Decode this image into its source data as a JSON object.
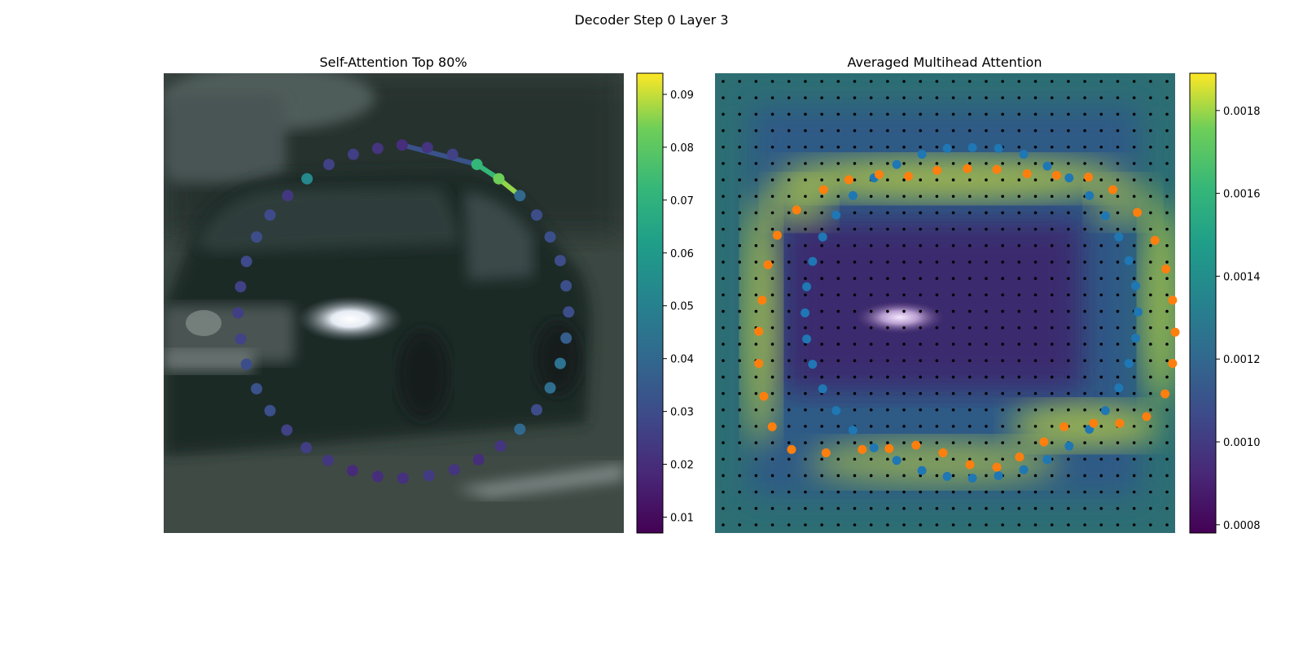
{
  "figure": {
    "suptitle": "Decoder Step 0 Layer 3"
  },
  "chart_data": [
    {
      "type": "scatter",
      "title": "Self-Attention Top 80%",
      "background": "photo: dark green station wagon car, headlight lit, trees in background",
      "colormap": "viridis",
      "colorbar": {
        "range": [
          0.007,
          0.094
        ],
        "ticks": [
          "0.01",
          "0.02",
          "0.03",
          "0.04",
          "0.05",
          "0.06",
          "0.07",
          "0.08",
          "0.09"
        ]
      },
      "points": [
        {
          "x": 478,
          "y": 172,
          "v": 0.02
        },
        {
          "x": 508,
          "y": 175,
          "v": 0.022
        },
        {
          "x": 538,
          "y": 183,
          "v": 0.026
        },
        {
          "x": 567,
          "y": 195,
          "v": 0.072
        },
        {
          "x": 593,
          "y": 212,
          "v": 0.083
        },
        {
          "x": 618,
          "y": 232,
          "v": 0.04
        },
        {
          "x": 638,
          "y": 255,
          "v": 0.03
        },
        {
          "x": 654,
          "y": 281,
          "v": 0.031
        },
        {
          "x": 666,
          "y": 309,
          "v": 0.03
        },
        {
          "x": 673,
          "y": 339,
          "v": 0.031
        },
        {
          "x": 676,
          "y": 370,
          "v": 0.03
        },
        {
          "x": 673,
          "y": 401,
          "v": 0.036
        },
        {
          "x": 666,
          "y": 431,
          "v": 0.044
        },
        {
          "x": 654,
          "y": 460,
          "v": 0.042
        },
        {
          "x": 638,
          "y": 486,
          "v": 0.03
        },
        {
          "x": 618,
          "y": 509,
          "v": 0.04
        },
        {
          "x": 595,
          "y": 529,
          "v": 0.022
        },
        {
          "x": 569,
          "y": 545,
          "v": 0.02
        },
        {
          "x": 540,
          "y": 557,
          "v": 0.022
        },
        {
          "x": 510,
          "y": 564,
          "v": 0.024
        },
        {
          "x": 479,
          "y": 567,
          "v": 0.021
        },
        {
          "x": 449,
          "y": 565,
          "v": 0.02
        },
        {
          "x": 419,
          "y": 558,
          "v": 0.019
        },
        {
          "x": 390,
          "y": 546,
          "v": 0.023
        },
        {
          "x": 364,
          "y": 531,
          "v": 0.025
        },
        {
          "x": 341,
          "y": 510,
          "v": 0.026
        },
        {
          "x": 321,
          "y": 487,
          "v": 0.031
        },
        {
          "x": 305,
          "y": 461,
          "v": 0.032
        },
        {
          "x": 293,
          "y": 432,
          "v": 0.03
        },
        {
          "x": 286,
          "y": 402,
          "v": 0.027
        },
        {
          "x": 283,
          "y": 371,
          "v": 0.025
        },
        {
          "x": 286,
          "y": 340,
          "v": 0.026
        },
        {
          "x": 293,
          "y": 310,
          "v": 0.029
        },
        {
          "x": 305,
          "y": 281,
          "v": 0.03
        },
        {
          "x": 321,
          "y": 255,
          "v": 0.029
        },
        {
          "x": 342,
          "y": 232,
          "v": 0.023
        },
        {
          "x": 365,
          "y": 212,
          "v": 0.053
        },
        {
          "x": 391,
          "y": 195,
          "v": 0.026
        },
        {
          "x": 420,
          "y": 183,
          "v": 0.025
        },
        {
          "x": 449,
          "y": 176,
          "v": 0.022
        }
      ],
      "lines": [
        {
          "from": [
            593,
            212
          ],
          "to": [
            613,
            228
          ],
          "v": 0.086
        },
        {
          "from": [
            567,
            195
          ],
          "to": [
            593,
            212
          ],
          "v": 0.072
        },
        {
          "from": [
            478,
            172
          ],
          "to": [
            567,
            195
          ],
          "v": 0.032
        }
      ]
    },
    {
      "type": "heatmap",
      "title": "Averaged Multihead Attention",
      "background": "photo: same car, dimmed, with attention heatmap overlay",
      "colormap": "viridis",
      "colorbar": {
        "range": [
          0.00078,
          0.00189
        ],
        "ticks": [
          "0.0008",
          "0.0010",
          "0.0012",
          "0.0014",
          "0.0016",
          "0.0018"
        ]
      },
      "grid_dots": {
        "cols": 28,
        "rows": 28
      },
      "blue_points": [
        [
          1096,
          183
        ],
        [
          1126,
          176
        ],
        [
          1156,
          175
        ],
        [
          1187,
          176
        ],
        [
          1217,
          183
        ],
        [
          1245,
          197
        ],
        [
          1271,
          211
        ],
        [
          1295,
          232
        ],
        [
          1314,
          256
        ],
        [
          1330,
          281
        ],
        [
          1342,
          309
        ],
        [
          1350,
          339
        ],
        [
          1353,
          370
        ],
        [
          1350,
          401
        ],
        [
          1342,
          431
        ],
        [
          1330,
          460
        ],
        [
          1314,
          487
        ],
        [
          1295,
          509
        ],
        [
          1271,
          529
        ],
        [
          1245,
          545
        ],
        [
          1217,
          557
        ],
        [
          1187,
          564
        ],
        [
          1156,
          567
        ],
        [
          1126,
          565
        ],
        [
          1096,
          558
        ],
        [
          1066,
          546
        ],
        [
          1039,
          531
        ],
        [
          1014,
          510
        ],
        [
          994,
          487
        ],
        [
          978,
          461
        ],
        [
          966,
          432
        ],
        [
          959,
          402
        ],
        [
          957,
          371
        ],
        [
          959,
          340
        ],
        [
          966,
          310
        ],
        [
          978,
          281
        ],
        [
          994,
          255
        ],
        [
          1014,
          232
        ],
        [
          1039,
          211
        ],
        [
          1066,
          195
        ]
      ],
      "orange_points": [
        [
          1256,
          208
        ],
        [
          1294,
          210
        ],
        [
          1323,
          225
        ],
        [
          1352,
          252
        ],
        [
          1373,
          285
        ],
        [
          1386,
          319
        ],
        [
          1394,
          356
        ],
        [
          1397,
          394
        ],
        [
          1394,
          431
        ],
        [
          1385,
          467
        ],
        [
          1363,
          494
        ],
        [
          1331,
          502
        ],
        [
          1300,
          502
        ],
        [
          1265,
          506
        ],
        [
          1241,
          524
        ],
        [
          1212,
          542
        ],
        [
          1185,
          554
        ],
        [
          1153,
          551
        ],
        [
          1121,
          537
        ],
        [
          1089,
          528
        ],
        [
          1057,
          532
        ],
        [
          1025,
          533
        ],
        [
          982,
          537
        ],
        [
          941,
          533
        ],
        [
          918,
          506
        ],
        [
          908,
          470
        ],
        [
          902,
          431
        ],
        [
          902,
          393
        ],
        [
          906,
          356
        ],
        [
          913,
          314
        ],
        [
          924,
          279
        ],
        [
          947,
          249
        ],
        [
          979,
          225
        ],
        [
          1009,
          213
        ],
        [
          1045,
          207
        ],
        [
          1080,
          209
        ],
        [
          1114,
          202
        ],
        [
          1150,
          200
        ],
        [
          1185,
          201
        ],
        [
          1221,
          206
        ]
      ],
      "heat_blobs": [
        {
          "x": 1130,
          "y": 212,
          "sx": 210,
          "sy": 26,
          "a": 0.95
        },
        {
          "x": 905,
          "y": 380,
          "sx": 22,
          "sy": 150,
          "a": 0.9
        },
        {
          "x": 1380,
          "y": 360,
          "sx": 24,
          "sy": 120,
          "a": 0.85
        },
        {
          "x": 1290,
          "y": 505,
          "sx": 90,
          "sy": 28,
          "a": 0.9
        },
        {
          "x": 1110,
          "y": 548,
          "sx": 150,
          "sy": 28,
          "a": 0.75
        },
        {
          "x": 950,
          "y": 240,
          "sx": 40,
          "sy": 30,
          "a": 0.7
        },
        {
          "x": 1335,
          "y": 240,
          "sx": 40,
          "sy": 30,
          "a": 0.6
        }
      ]
    }
  ]
}
